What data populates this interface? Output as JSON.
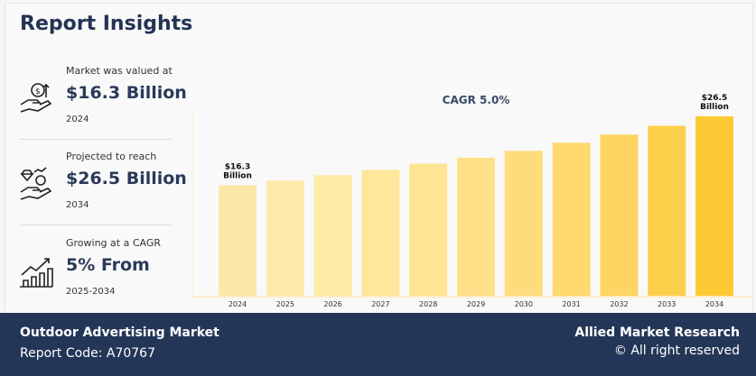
{
  "title": "Report Insights",
  "stats": [
    {
      "label": "Market was valued at",
      "value": "$16.3 Billion",
      "year": "2024",
      "icon": "money-hand-icon"
    },
    {
      "label": "Projected to reach",
      "value": "$26.5 Billion",
      "year": "2034",
      "icon": "diamond-hand-icon"
    },
    {
      "label": "Growing at a CAGR",
      "value": "5% From",
      "year": "2025-2034",
      "icon": "growth-chart-icon"
    }
  ],
  "chart_data": {
    "type": "bar",
    "title": "CAGR 5.0%",
    "categories": [
      "2024",
      "2025",
      "2026",
      "2027",
      "2028",
      "2029",
      "2030",
      "2031",
      "2032",
      "2033",
      "2034"
    ],
    "values": [
      16.3,
      17.0,
      17.8,
      18.6,
      19.5,
      20.4,
      21.4,
      22.6,
      23.8,
      25.1,
      26.5
    ],
    "annotations": [
      {
        "category": "2024",
        "text": [
          "$16.3",
          "Billion"
        ]
      },
      {
        "category": "2034",
        "text": [
          "$26.5",
          "Billion"
        ]
      }
    ],
    "xlabel": "",
    "ylabel": "",
    "ylim": [
      0,
      26.5
    ],
    "grid": false,
    "colors": [
      "#fde7a6",
      "#fde9ab",
      "#feeaa5",
      "#fee79b",
      "#fee493",
      "#fee088",
      "#fedc7c",
      "#fed96e",
      "#fed562",
      "#fdd04c",
      "#fdca35"
    ]
  },
  "footer": {
    "market": "Outdoor Advertising Market",
    "code": "Report Code: A70767",
    "brand": "Allied Market Research",
    "rights": "© All right reserved"
  }
}
